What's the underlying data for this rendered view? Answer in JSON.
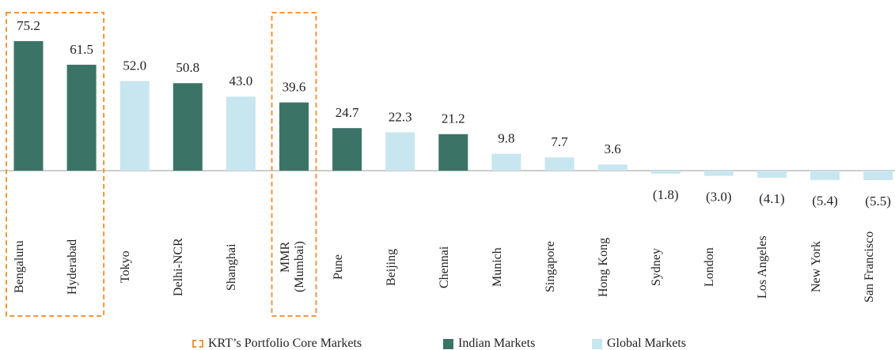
{
  "chart_data": {
    "type": "bar",
    "categories": [
      "Bengaluru",
      "Hyderabad",
      "Tokyo",
      "Delhi-NCR",
      "Shanghai",
      "MMR\n(Mumbai)",
      "Pune",
      "Beijing",
      "Chennai",
      "Munich",
      "Singapore",
      "Hong Kong",
      "Sydney",
      "London",
      "Los Angeles",
      "New York",
      "San Francisco"
    ],
    "series": [
      {
        "name": "Indian Markets",
        "color": "#3b7367",
        "values": [
          75.2,
          61.5,
          null,
          50.8,
          null,
          39.6,
          24.7,
          null,
          21.2,
          null,
          null,
          null,
          null,
          null,
          null,
          null,
          null
        ],
        "value_labels": [
          "75.2",
          "61.5",
          null,
          "50.8",
          null,
          "39.6",
          "24.7",
          null,
          "21.2",
          null,
          null,
          null,
          null,
          null,
          null,
          null,
          null
        ]
      },
      {
        "name": "Global Markets",
        "color": "#c8e6ef",
        "values": [
          null,
          null,
          52.0,
          null,
          43.0,
          null,
          null,
          22.3,
          null,
          9.8,
          7.7,
          3.6,
          -1.8,
          -3.0,
          -4.1,
          -5.4,
          -5.5
        ],
        "value_labels": [
          null,
          null,
          "52.0",
          null,
          "43.0",
          null,
          null,
          "22.3",
          null,
          "9.8",
          "7.7",
          "3.6",
          "(1.8)",
          "(3.0)",
          "(4.1)",
          "(5.4)",
          "(5.5)"
        ]
      }
    ],
    "highlight": {
      "name": "KRT’s Portfolio Core Markets",
      "color": "#f0963c",
      "groups": [
        [
          "Bengaluru",
          "Hyderabad"
        ],
        [
          "MMR\n(Mumbai)"
        ]
      ]
    },
    "ylim": [
      -10,
      80
    ]
  }
}
